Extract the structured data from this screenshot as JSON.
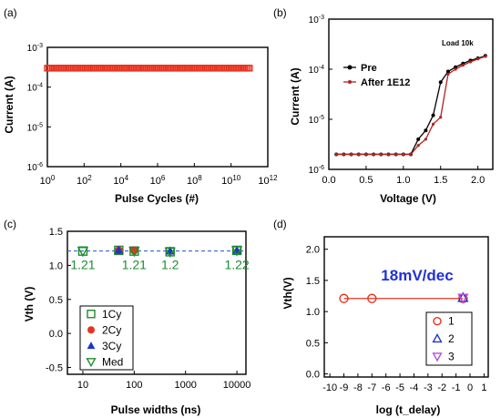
{
  "colors": {
    "red": "#e8321f",
    "darkred": "#b22222",
    "blue": "#1f35c8",
    "green": "#1e8c2d",
    "magenta": "#b24fd6",
    "black": "#000000",
    "dashblue": "#2a4fd4",
    "annot_blue": "#2030d8"
  },
  "chart_data": [
    {
      "id": "a",
      "panel_label": "(a)",
      "type": "scatter",
      "xlabel": "Pulse Cycles (#)",
      "ylabel": "Current (A)",
      "xscale": "log",
      "yscale": "log",
      "xlim": [
        1,
        1000000000000.0
      ],
      "ylim": [
        1e-06,
        0.001
      ],
      "xticks": [
        {
          "v": 1,
          "t": "10",
          "s": "0"
        },
        {
          "v": 100,
          "t": "10",
          "s": "2"
        },
        {
          "v": 10000,
          "t": "10",
          "s": "4"
        },
        {
          "v": 1000000,
          "t": "10",
          "s": "6"
        },
        {
          "v": 100000000,
          "t": "10",
          "s": "8"
        },
        {
          "v": 10000000000,
          "t": "10",
          "s": "10"
        },
        {
          "v": 1000000000000,
          "t": "10",
          "s": "12"
        }
      ],
      "yticks": [
        {
          "v": 1e-06,
          "t": "10",
          "s": "-6"
        },
        {
          "v": 1e-05,
          "t": "10",
          "s": "-5"
        },
        {
          "v": 0.0001,
          "t": "10",
          "s": "-4"
        },
        {
          "v": 0.001,
          "t": "10",
          "s": "-3"
        }
      ],
      "series": [
        {
          "color": "red",
          "marker": "square-open",
          "x_range": [
            1,
            100000000000.0
          ],
          "y": 0.0003,
          "n": 120
        }
      ]
    },
    {
      "id": "b",
      "panel_label": "(b)",
      "type": "line",
      "xlabel": "Voltage (V)",
      "ylabel": "Current (A)",
      "xscale": "linear",
      "yscale": "log",
      "xlim": [
        0.0,
        2.2
      ],
      "ylim": [
        1e-06,
        0.001
      ],
      "xticks": [
        {
          "v": 0.0,
          "t": "0.0"
        },
        {
          "v": 0.5,
          "t": "0.5"
        },
        {
          "v": 1.0,
          "t": "1.0"
        },
        {
          "v": 1.5,
          "t": "1.5"
        },
        {
          "v": 2.0,
          "t": "2.0"
        }
      ],
      "yticks": [
        {
          "v": 1e-06,
          "t": "10",
          "s": "-6"
        },
        {
          "v": 1e-05,
          "t": "10",
          "s": "-5"
        },
        {
          "v": 0.0001,
          "t": "10",
          "s": "-4"
        },
        {
          "v": 0.001,
          "t": "10",
          "s": "-3"
        }
      ],
      "annotation": "Load 10k",
      "legend_position": "upper-right",
      "series": [
        {
          "name": "Pre",
          "color": "black",
          "marker": "circle",
          "x": [
            0.1,
            0.2,
            0.3,
            0.4,
            0.5,
            0.6,
            0.7,
            0.8,
            0.9,
            1.0,
            1.1,
            1.2,
            1.3,
            1.4,
            1.5,
            1.6,
            1.7,
            1.8,
            1.9,
            2.0,
            2.1
          ],
          "y": [
            2e-06,
            2e-06,
            2e-06,
            2e-06,
            2e-06,
            2e-06,
            2e-06,
            2e-06,
            2e-06,
            2e-06,
            2e-06,
            4e-06,
            6e-06,
            1.2e-05,
            5.5e-05,
            9e-05,
            0.00011,
            0.00013,
            0.00015,
            0.000165,
            0.000185
          ]
        },
        {
          "name": "After 1E12",
          "color": "darkred",
          "marker": "circle-small",
          "x": [
            0.1,
            0.2,
            0.3,
            0.4,
            0.5,
            0.6,
            0.7,
            0.8,
            0.9,
            1.0,
            1.1,
            1.2,
            1.3,
            1.4,
            1.5,
            1.6,
            1.7,
            1.8,
            1.9,
            2.0,
            2.1
          ],
          "y": [
            2e-06,
            2e-06,
            2e-06,
            2e-06,
            2e-06,
            2e-06,
            2e-06,
            2e-06,
            2e-06,
            2e-06,
            2e-06,
            3e-06,
            4e-06,
            8e-06,
            1.1e-05,
            8e-05,
            0.0001,
            0.00012,
            0.00014,
            0.00016,
            0.00018
          ]
        }
      ]
    },
    {
      "id": "c",
      "panel_label": "(c)",
      "type": "scatter",
      "xlabel": "Pulse widths (ns)",
      "ylabel": "Vth (V)",
      "xscale": "log",
      "yscale": "linear",
      "xlim": [
        5,
        15000
      ],
      "ylim": [
        -0.6,
        1.5
      ],
      "xticks": [
        {
          "v": 10,
          "t": "10"
        },
        {
          "v": 100,
          "t": "100"
        },
        {
          "v": 1000,
          "t": "1000"
        },
        {
          "v": 10000,
          "t": "10000"
        }
      ],
      "yticks": [
        {
          "v": -0.5,
          "t": "-0.5"
        },
        {
          "v": 0.0,
          "t": "0.0"
        },
        {
          "v": 0.5,
          "t": "0.5"
        },
        {
          "v": 1.0,
          "t": "1.0"
        },
        {
          "v": 1.5,
          "t": "1.5"
        }
      ],
      "reference_line": {
        "y": 1.21,
        "color": "dashblue",
        "style": "dashed"
      },
      "data_labels": [
        {
          "x": 10,
          "text": "1.21"
        },
        {
          "x": 100,
          "text": "1.21"
        },
        {
          "x": 500,
          "text": "1.2"
        },
        {
          "x": 10000,
          "text": "1.22"
        }
      ],
      "legend_position": "lower-left",
      "series": [
        {
          "name": "1Cy",
          "color": "green",
          "marker": "square-open",
          "x": [
            10,
            50,
            100,
            500,
            10000
          ],
          "y": [
            1.21,
            1.22,
            1.21,
            1.2,
            1.22
          ]
        },
        {
          "name": "2Cy",
          "color": "red",
          "marker": "circle-filled",
          "x": [
            50,
            100
          ],
          "y": [
            1.22,
            1.22
          ]
        },
        {
          "name": "3Cy",
          "color": "blue",
          "marker": "triangle-filled",
          "x": [
            50,
            500,
            10000
          ],
          "y": [
            1.22,
            1.21,
            1.22
          ]
        },
        {
          "name": "Med",
          "color": "green",
          "marker": "triangle-down-open",
          "x": [
            10,
            100,
            500,
            10000
          ],
          "y": [
            1.21,
            1.21,
            1.2,
            1.22
          ]
        }
      ]
    },
    {
      "id": "d",
      "panel_label": "(d)",
      "type": "scatter",
      "xlabel": "log (t_delay)",
      "ylabel": "Vth(V)",
      "xscale": "linear",
      "yscale": "linear",
      "xlim": [
        -10.4,
        1.3
      ],
      "ylim": [
        -0.05,
        2.2
      ],
      "xticks": [
        {
          "v": -10,
          "t": "-10"
        },
        {
          "v": -9,
          "t": "-9"
        },
        {
          "v": -8,
          "t": "-8"
        },
        {
          "v": -7,
          "t": "-7"
        },
        {
          "v": -6,
          "t": "-6"
        },
        {
          "v": -5,
          "t": "-5"
        },
        {
          "v": -4,
          "t": "-4"
        },
        {
          "v": -3,
          "t": "-3"
        },
        {
          "v": -2,
          "t": "-2"
        },
        {
          "v": -1,
          "t": "-1"
        },
        {
          "v": 0,
          "t": "0"
        },
        {
          "v": 1,
          "t": "1"
        }
      ],
      "yticks": [
        {
          "v": 0.0,
          "t": "0.0"
        },
        {
          "v": 0.5,
          "t": "0.5"
        },
        {
          "v": 1.0,
          "t": "1.0"
        },
        {
          "v": 1.5,
          "t": "1.5"
        },
        {
          "v": 2.0,
          "t": "2.0"
        }
      ],
      "annotation": "18mV/dec",
      "legend_position": "lower-right",
      "series": [
        {
          "name": "1",
          "color": "red",
          "marker": "circle-open",
          "x": [
            -9,
            -7,
            -0.5
          ],
          "y": [
            1.21,
            1.21,
            1.21
          ],
          "line": true
        },
        {
          "name": "2",
          "color": "blue",
          "marker": "triangle-open",
          "x": [
            -0.5
          ],
          "y": [
            1.22
          ]
        },
        {
          "name": "3",
          "color": "magenta",
          "marker": "triangle-down-open",
          "x": [
            -0.5
          ],
          "y": [
            1.22
          ]
        }
      ]
    }
  ]
}
